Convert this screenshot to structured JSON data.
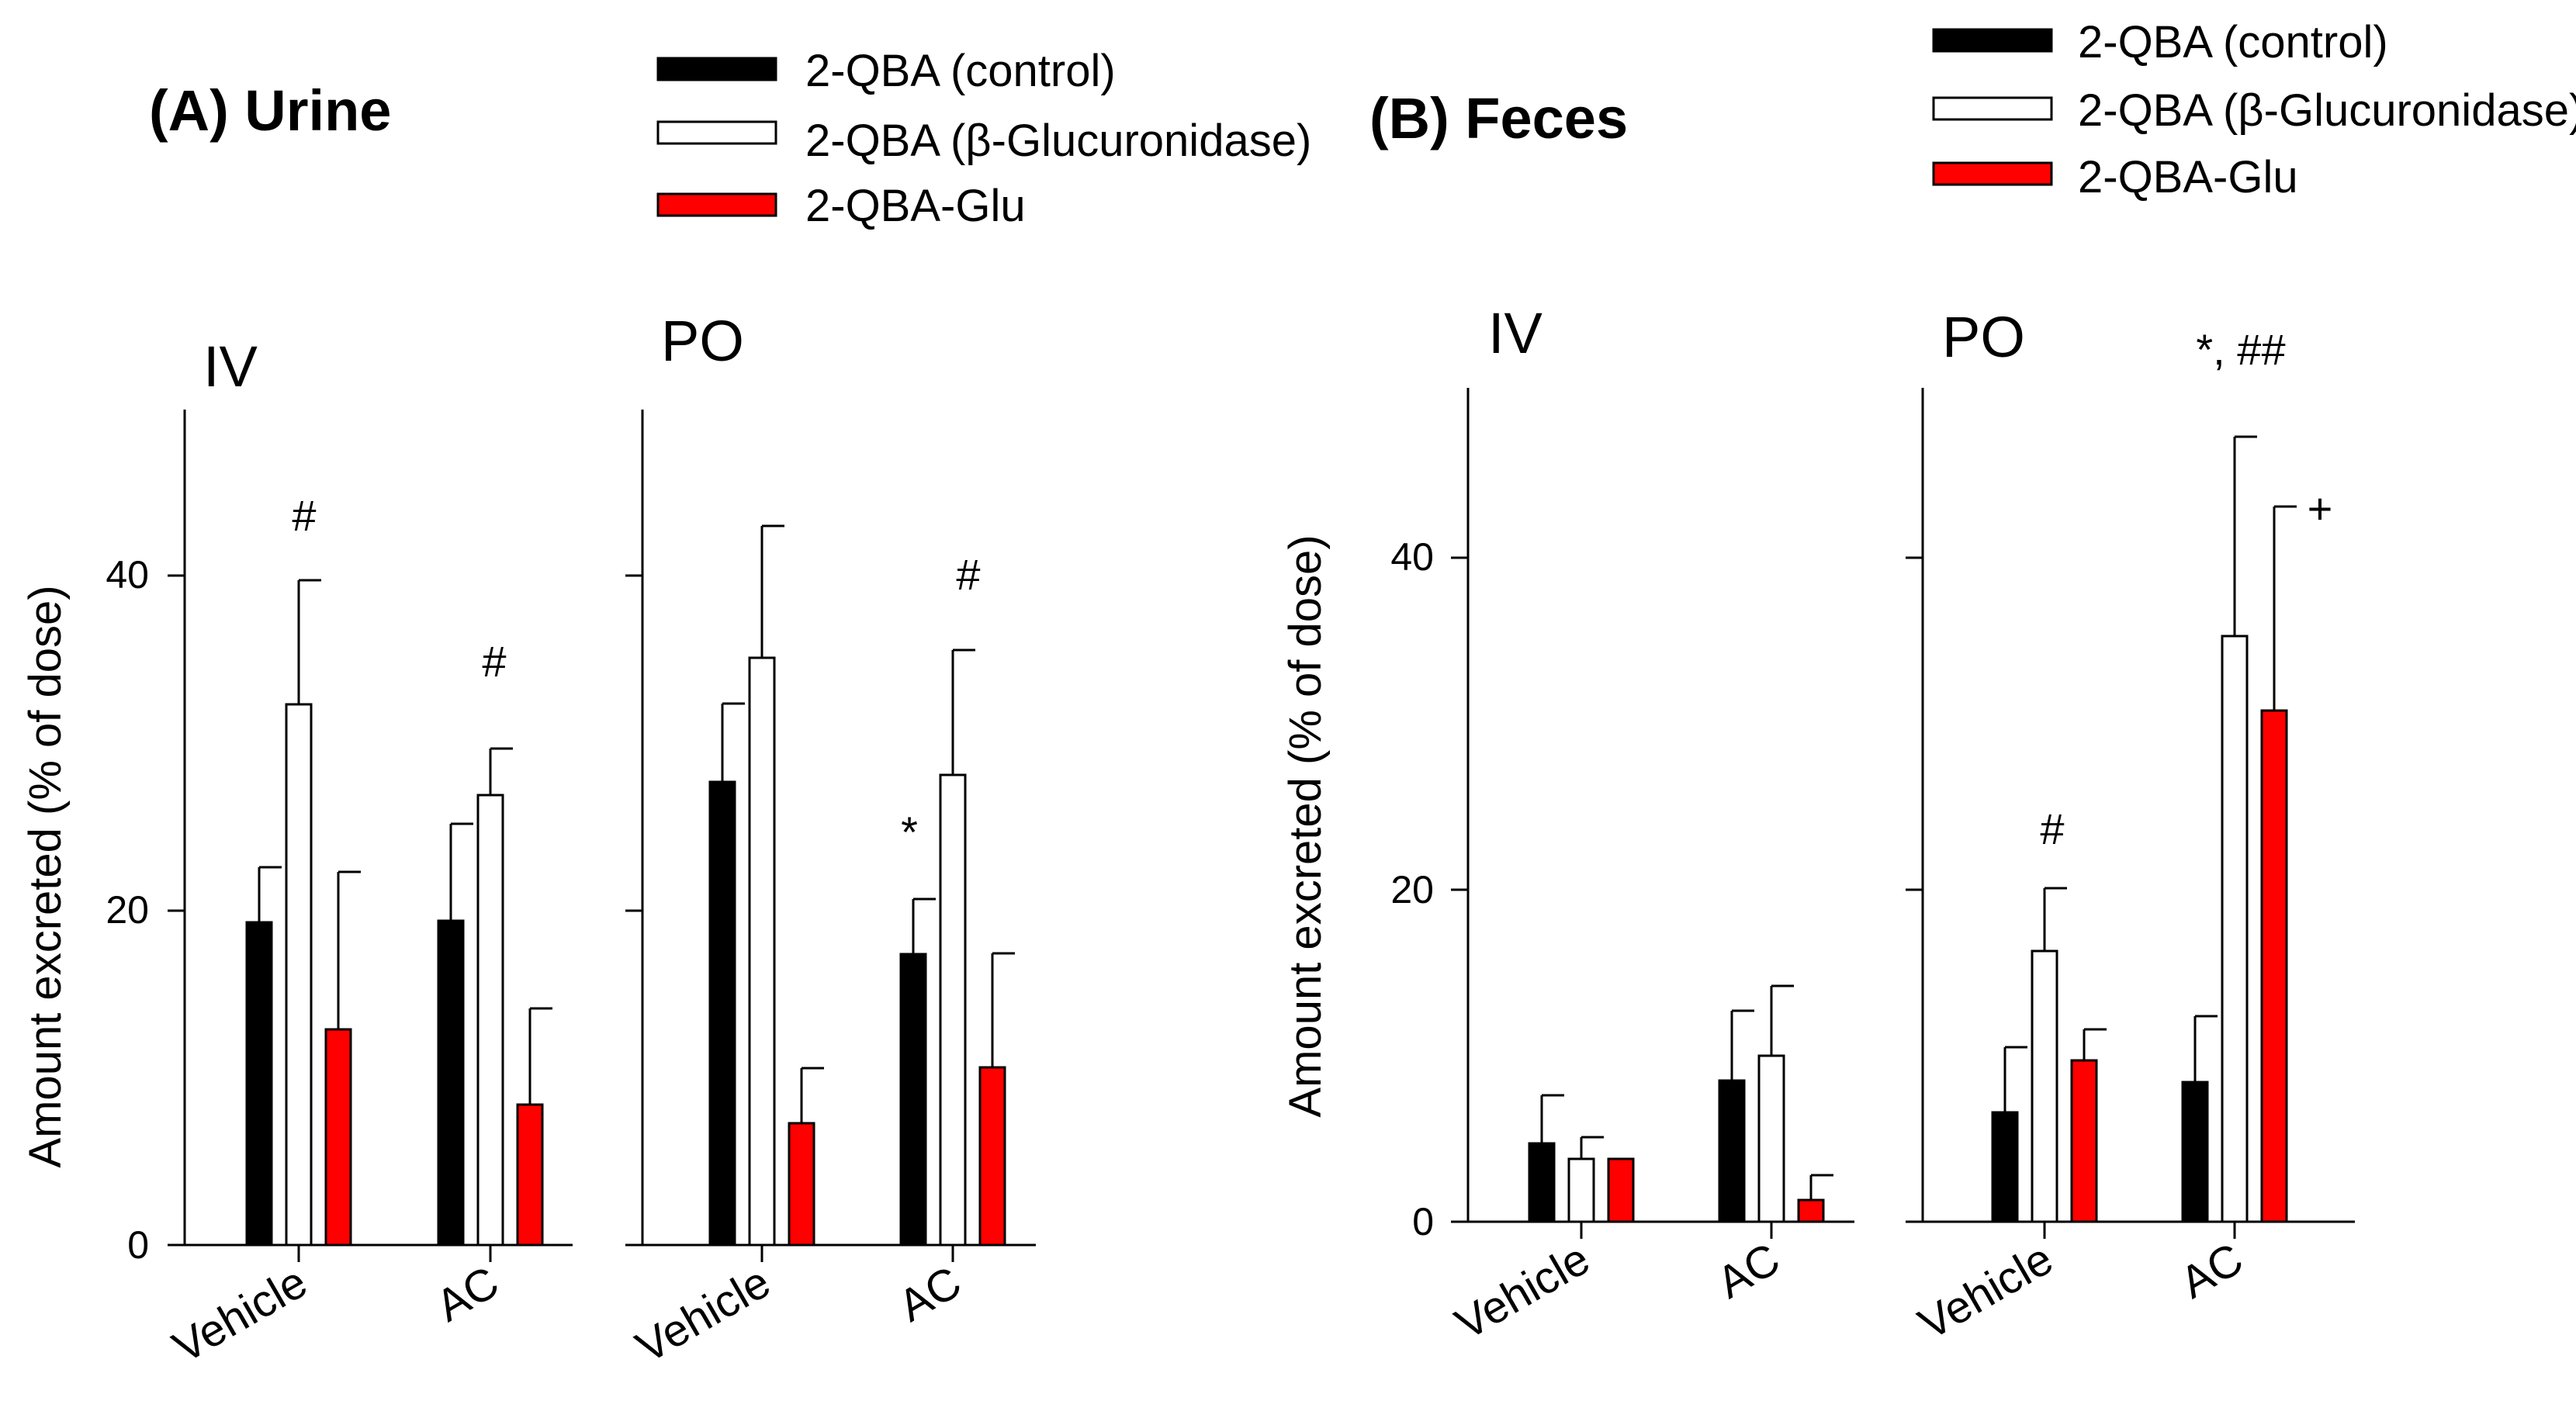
{
  "colors": {
    "control": "#000000",
    "enzyme": "#ffffff",
    "glu": "#ff0000",
    "axis": "#000000"
  },
  "legend_items": [
    {
      "key": "control",
      "label": "2-QBA (control)"
    },
    {
      "key": "enzyme",
      "label": "2-QBA (β-Glucuronidase)"
    },
    {
      "key": "glu",
      "label": "2-QBA-Glu"
    }
  ],
  "chart_data": [
    {
      "type": "bar",
      "title": "(A) Urine",
      "ylabel": "Amount excreted (% of dose)",
      "ylim": [
        0,
        50
      ],
      "yticks": [
        0,
        20,
        40
      ],
      "series_names": [
        "2-QBA (control)",
        "2-QBA (β-Glucuronidase)",
        "2-QBA-Glu"
      ],
      "subpanels": [
        {
          "title": "IV",
          "categories": [
            "Vehicle",
            "AC"
          ],
          "series": [
            {
              "name": "2-QBA (control)",
              "values": [
                19.3,
                19.4
              ],
              "errors": [
                3.3,
                5.8
              ]
            },
            {
              "name": "2-QBA (β-Glucuronidase)",
              "values": [
                32.3,
                26.9
              ],
              "errors": [
                7.6,
                2.8
              ]
            },
            {
              "name": "2-QBA-Glu",
              "values": [
                13.0,
                8.4
              ],
              "errors": [
                9.2,
                5.8
              ]
            }
          ],
          "annotations": [
            {
              "category": 0,
              "series": 1,
              "text": "#"
            },
            {
              "category": 1,
              "series": 1,
              "text": "#"
            }
          ]
        },
        {
          "title": "PO",
          "categories": [
            "Vehicle",
            "AC"
          ],
          "series": [
            {
              "name": "2-QBA (control)",
              "values": [
                27.7,
                17.4
              ],
              "errors": [
                4.7,
                3.3
              ]
            },
            {
              "name": "2-QBA (β-Glucuronidase)",
              "values": [
                35.1,
                28.1
              ],
              "errors": [
                7.9,
                7.7
              ]
            },
            {
              "name": "2-QBA-Glu",
              "values": [
                7.3,
                10.6
              ],
              "errors": [
                3.3,
                6.8
              ]
            }
          ],
          "annotations": [
            {
              "category": 1,
              "series": 0,
              "text": "*"
            },
            {
              "category": 1,
              "series": 1,
              "text": "#"
            }
          ]
        }
      ]
    },
    {
      "type": "bar",
      "title": "(B) Feces",
      "ylabel": "Amount excreted (% of dose)",
      "ylim": [
        0,
        50
      ],
      "yticks": [
        0,
        20,
        40
      ],
      "series_names": [
        "2-QBA (control)",
        "2-QBA (β-Glucuronidase)",
        "2-QBA-Glu"
      ],
      "subpanels": [
        {
          "title": "IV",
          "categories": [
            "Vehicle",
            "AC"
          ],
          "series": [
            {
              "name": "2-QBA (control)",
              "values": [
                4.7,
                8.5
              ],
              "errors": [
                2.9,
                4.2
              ]
            },
            {
              "name": "2-QBA (β-Glucuronidase)",
              "values": [
                3.8,
                10.0
              ],
              "errors": [
                1.3,
                4.2
              ]
            },
            {
              "name": "2-QBA-Glu",
              "values": [
                3.8,
                1.3
              ],
              "errors": [
                0.0,
                1.5
              ]
            }
          ],
          "annotations": []
        },
        {
          "title": "PO",
          "categories": [
            "Vehicle",
            "AC"
          ],
          "series": [
            {
              "name": "2-QBA (control)",
              "values": [
                6.6,
                8.4
              ],
              "errors": [
                3.9,
                4.0
              ]
            },
            {
              "name": "2-QBA (β-Glucuronidase)",
              "values": [
                16.3,
                35.3
              ],
              "errors": [
                3.8,
                12.0
              ]
            },
            {
              "name": "2-QBA-Glu",
              "values": [
                9.7,
                30.8
              ],
              "errors": [
                1.9,
                12.3
              ]
            }
          ],
          "annotations": [
            {
              "category": 0,
              "series": 1,
              "text": "#"
            },
            {
              "category": 1,
              "series": 1,
              "text": "*, ##"
            },
            {
              "category": 1,
              "series": 2,
              "text": "+"
            }
          ]
        }
      ]
    }
  ]
}
